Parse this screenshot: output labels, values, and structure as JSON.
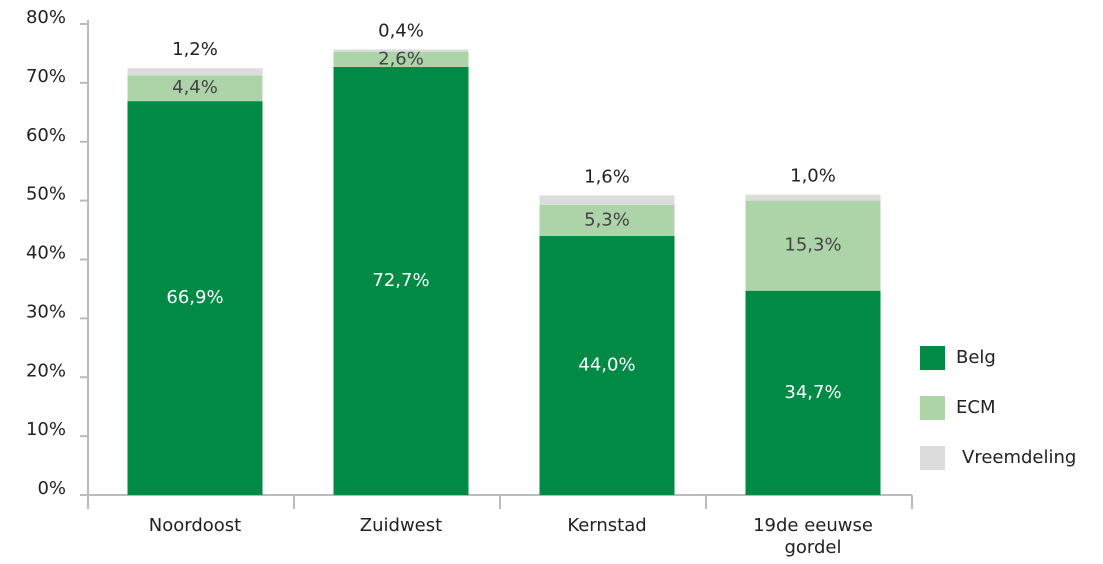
{
  "chart_data": {
    "type": "stacked_bar",
    "categories": [
      "Noordoost",
      "Zuidwest",
      "Kernstad",
      "19de eeuwse gordel"
    ],
    "series": [
      {
        "name": "Belg",
        "color": "#008a45",
        "values": [
          66.9,
          72.7,
          44.0,
          34.7
        ],
        "value_labels": [
          "66,9%",
          "72,7%",
          "44,0%",
          "34,7%"
        ]
      },
      {
        "name": "ECM",
        "color": "#acd4a8",
        "values": [
          4.4,
          2.6,
          5.3,
          15.3
        ],
        "value_labels": [
          "4,4%",
          "2,6%",
          "5,3%",
          "15,3%"
        ]
      },
      {
        "name": "Vreemdeling",
        "color": "#dcdcdc",
        "values": [
          1.2,
          0.4,
          1.6,
          1.0
        ],
        "value_labels": [
          "1,2%",
          "0,4%",
          "1,6%",
          "1,0%"
        ]
      }
    ],
    "ylim": [
      0,
      80
    ],
    "yticks": [
      {
        "value": 0,
        "label": "0%"
      },
      {
        "value": 10,
        "label": "10%"
      },
      {
        "value": 20,
        "label": "20%"
      },
      {
        "value": 30,
        "label": "30%"
      },
      {
        "value": 40,
        "label": "40%"
      },
      {
        "value": 50,
        "label": "50%"
      },
      {
        "value": 60,
        "label": "60%"
      },
      {
        "value": 70,
        "label": "70%"
      },
      {
        "value": 80,
        "label": "80%"
      }
    ],
    "grid": false,
    "legend": "right"
  }
}
